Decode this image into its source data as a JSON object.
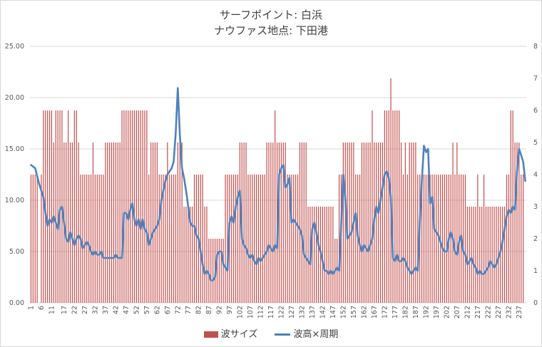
{
  "title_line1": "サーフポイント: 白浜",
  "title_line2": "ナウファス地点: 下田港",
  "legend": {
    "bars": "波サイズ",
    "line": "波高×周期"
  },
  "colors": {
    "bars": "#c0504d",
    "line": "#4f81bd",
    "grid": "#d9d9d9"
  },
  "chart_data": {
    "type": "bar+line",
    "n_points": 240,
    "y_left": {
      "min": 0,
      "max": 25,
      "ticks": [
        "0.00",
        "5.00",
        "10.00",
        "15.00",
        "20.00",
        "25.00"
      ]
    },
    "y_right": {
      "min": 0,
      "max": 8,
      "ticks": [
        "0",
        "1",
        "2",
        "3",
        "4",
        "5",
        "6",
        "7",
        "8"
      ]
    },
    "x_ticks": [
      "1",
      "6",
      "11",
      "17",
      "22",
      "27",
      "32",
      "37",
      "42",
      "47",
      "52",
      "57",
      "62",
      "67",
      "72",
      "77",
      "82",
      "87",
      "92",
      "97",
      "102",
      "107",
      "112",
      "117",
      "122",
      "127",
      "132",
      "137",
      "142",
      "147",
      "152",
      "157",
      "162",
      "167",
      "172",
      "177",
      "182",
      "187",
      "192",
      "197",
      "202",
      "207",
      "212",
      "217",
      "222",
      "227",
      "232",
      "237"
    ],
    "bar_segments": [
      [
        1,
        4,
        4
      ],
      [
        5,
        5,
        0
      ],
      [
        6,
        6,
        4
      ],
      [
        7,
        11,
        6
      ],
      [
        12,
        12,
        5
      ],
      [
        13,
        16,
        6
      ],
      [
        17,
        18,
        5
      ],
      [
        19,
        19,
        6
      ],
      [
        20,
        21,
        5
      ],
      [
        22,
        23,
        6
      ],
      [
        24,
        24,
        5
      ],
      [
        25,
        30,
        4
      ],
      [
        31,
        31,
        5
      ],
      [
        32,
        36,
        4
      ],
      [
        37,
        44,
        5
      ],
      [
        45,
        57,
        6
      ],
      [
        58,
        58,
        4
      ],
      [
        59,
        59,
        5
      ],
      [
        60,
        62,
        5
      ],
      [
        63,
        66,
        4
      ],
      [
        67,
        67,
        5
      ],
      [
        68,
        71,
        4
      ],
      [
        72,
        74,
        5
      ],
      [
        75,
        79,
        3
      ],
      [
        80,
        84,
        4
      ],
      [
        85,
        86,
        3
      ],
      [
        87,
        94,
        2
      ],
      [
        95,
        95,
        4
      ],
      [
        96,
        100,
        4
      ],
      [
        101,
        101,
        4
      ],
      [
        102,
        105,
        5
      ],
      [
        106,
        114,
        4
      ],
      [
        115,
        115,
        5
      ],
      [
        116,
        118,
        5
      ],
      [
        119,
        119,
        6
      ],
      [
        120,
        124,
        5
      ],
      [
        125,
        129,
        4
      ],
      [
        130,
        130,
        4
      ],
      [
        131,
        134,
        5
      ],
      [
        135,
        140,
        3
      ],
      [
        141,
        147,
        3
      ],
      [
        148,
        149,
        2
      ],
      [
        150,
        150,
        4
      ],
      [
        151,
        151,
        4
      ],
      [
        152,
        157,
        5
      ],
      [
        158,
        160,
        4
      ],
      [
        161,
        165,
        5
      ],
      [
        166,
        166,
        6
      ],
      [
        167,
        171,
        5
      ],
      [
        172,
        174,
        6
      ],
      [
        175,
        175,
        7
      ],
      [
        176,
        179,
        6
      ],
      [
        180,
        180,
        5
      ],
      [
        181,
        181,
        4
      ],
      [
        182,
        182,
        5
      ],
      [
        183,
        183,
        4
      ],
      [
        184,
        187,
        5
      ],
      [
        188,
        194,
        4
      ],
      [
        195,
        197,
        4
      ],
      [
        198,
        204,
        4
      ],
      [
        205,
        205,
        5
      ],
      [
        206,
        206,
        4
      ],
      [
        207,
        207,
        5
      ],
      [
        208,
        211,
        4
      ],
      [
        212,
        216,
        3
      ],
      [
        217,
        217,
        4
      ],
      [
        218,
        219,
        3
      ],
      [
        220,
        220,
        4
      ],
      [
        221,
        230,
        3
      ],
      [
        231,
        232,
        4
      ],
      [
        233,
        234,
        6
      ],
      [
        235,
        237,
        5
      ],
      [
        238,
        239,
        4
      ]
    ],
    "line_anchors": [
      [
        1,
        4.3
      ],
      [
        3,
        4.2
      ],
      [
        5,
        3.7
      ],
      [
        7,
        3.3
      ],
      [
        8,
        2.8
      ],
      [
        9,
        2.4
      ],
      [
        10,
        2.6
      ],
      [
        11,
        2.5
      ],
      [
        12,
        2.7
      ],
      [
        13,
        2.5
      ],
      [
        14,
        2.3
      ],
      [
        15,
        2.9
      ],
      [
        16,
        3.0
      ],
      [
        17,
        2.5
      ],
      [
        18,
        2.0
      ],
      [
        19,
        1.9
      ],
      [
        20,
        2.2
      ],
      [
        21,
        2.0
      ],
      [
        22,
        1.8
      ],
      [
        23,
        2.0
      ],
      [
        24,
        2.1
      ],
      [
        25,
        2.0
      ],
      [
        26,
        1.7
      ],
      [
        27,
        1.8
      ],
      [
        28,
        1.9
      ],
      [
        29,
        1.8
      ],
      [
        30,
        1.6
      ],
      [
        31,
        1.5
      ],
      [
        32,
        1.6
      ],
      [
        33,
        1.5
      ],
      [
        34,
        1.5
      ],
      [
        35,
        1.6
      ],
      [
        36,
        1.4
      ],
      [
        37,
        1.4
      ],
      [
        38,
        1.4
      ],
      [
        39,
        1.4
      ],
      [
        40,
        1.4
      ],
      [
        41,
        1.4
      ],
      [
        42,
        1.5
      ],
      [
        43,
        1.4
      ],
      [
        44,
        1.4
      ],
      [
        45,
        1.4
      ],
      [
        46,
        2.8
      ],
      [
        47,
        2.8
      ],
      [
        48,
        2.6
      ],
      [
        49,
        2.9
      ],
      [
        50,
        3.1
      ],
      [
        51,
        2.6
      ],
      [
        52,
        2.4
      ],
      [
        53,
        2.6
      ],
      [
        54,
        2.3
      ],
      [
        55,
        2.6
      ],
      [
        56,
        2.3
      ],
      [
        57,
        2.2
      ],
      [
        58,
        1.8
      ],
      [
        59,
        2.0
      ],
      [
        60,
        2.2
      ],
      [
        61,
        2.3
      ],
      [
        62,
        2.4
      ],
      [
        63,
        2.6
      ],
      [
        64,
        3.2
      ],
      [
        65,
        3.5
      ],
      [
        66,
        3.8
      ],
      [
        67,
        4.0
      ],
      [
        68,
        4.1
      ],
      [
        69,
        4.2
      ],
      [
        70,
        4.4
      ],
      [
        71,
        5.3
      ],
      [
        72,
        6.7
      ],
      [
        73,
        5.2
      ],
      [
        74,
        4.2
      ],
      [
        75,
        3.9
      ],
      [
        76,
        3.5
      ],
      [
        77,
        3.0
      ],
      [
        78,
        2.5
      ],
      [
        79,
        2.4
      ],
      [
        80,
        2.4
      ],
      [
        81,
        2.1
      ],
      [
        82,
        2.0
      ],
      [
        83,
        1.6
      ],
      [
        84,
        1.2
      ],
      [
        85,
        0.9
      ],
      [
        86,
        1.0
      ],
      [
        87,
        0.9
      ],
      [
        88,
        0.7
      ],
      [
        89,
        0.7
      ],
      [
        90,
        0.8
      ],
      [
        91,
        1.5
      ],
      [
        92,
        1.6
      ],
      [
        93,
        1.6
      ],
      [
        94,
        1.2
      ],
      [
        95,
        1.1
      ],
      [
        96,
        1.0
      ],
      [
        97,
        2.5
      ],
      [
        98,
        2.7
      ],
      [
        99,
        2.5
      ],
      [
        100,
        3.0
      ],
      [
        101,
        3.3
      ],
      [
        102,
        3.5
      ],
      [
        103,
        2.0
      ],
      [
        104,
        1.8
      ],
      [
        105,
        1.7
      ],
      [
        106,
        1.5
      ],
      [
        107,
        1.4
      ],
      [
        108,
        1.5
      ],
      [
        109,
        1.3
      ],
      [
        110,
        1.2
      ],
      [
        111,
        1.4
      ],
      [
        112,
        1.3
      ],
      [
        113,
        1.4
      ],
      [
        114,
        1.5
      ],
      [
        115,
        1.6
      ],
      [
        116,
        1.8
      ],
      [
        117,
        1.7
      ],
      [
        118,
        1.6
      ],
      [
        119,
        1.8
      ],
      [
        120,
        1.7
      ],
      [
        121,
        4.0
      ],
      [
        122,
        4.2
      ],
      [
        123,
        4.3
      ],
      [
        124,
        3.6
      ],
      [
        125,
        3.7
      ],
      [
        126,
        3.9
      ],
      [
        127,
        2.5
      ],
      [
        128,
        2.6
      ],
      [
        129,
        2.5
      ],
      [
        130,
        2.4
      ],
      [
        131,
        2.3
      ],
      [
        132,
        2.1
      ],
      [
        133,
        1.5
      ],
      [
        134,
        1.4
      ],
      [
        135,
        1.3
      ],
      [
        136,
        1.2
      ],
      [
        137,
        2.3
      ],
      [
        138,
        2.5
      ],
      [
        139,
        2.2
      ],
      [
        140,
        1.8
      ],
      [
        141,
        1.6
      ],
      [
        142,
        1.3
      ],
      [
        143,
        1.0
      ],
      [
        144,
        1.0
      ],
      [
        145,
        0.9
      ],
      [
        146,
        1.0
      ],
      [
        147,
        0.9
      ],
      [
        148,
        1.0
      ],
      [
        149,
        1.1
      ],
      [
        150,
        1.0
      ],
      [
        151,
        2.4
      ],
      [
        152,
        4.0
      ],
      [
        153,
        3.2
      ],
      [
        154,
        2.0
      ],
      [
        155,
        2.1
      ],
      [
        156,
        2.2
      ],
      [
        157,
        2.5
      ],
      [
        158,
        2.8
      ],
      [
        159,
        2.1
      ],
      [
        160,
        1.8
      ],
      [
        161,
        1.6
      ],
      [
        162,
        1.8
      ],
      [
        163,
        1.7
      ],
      [
        164,
        1.6
      ],
      [
        165,
        1.8
      ],
      [
        166,
        2.0
      ],
      [
        167,
        2.6
      ],
      [
        168,
        3.0
      ],
      [
        169,
        2.8
      ],
      [
        170,
        3.2
      ],
      [
        171,
        3.6
      ],
      [
        172,
        4.0
      ],
      [
        173,
        4.1
      ],
      [
        174,
        3.9
      ],
      [
        175,
        3.3
      ],
      [
        176,
        1.4
      ],
      [
        177,
        1.3
      ],
      [
        178,
        1.5
      ],
      [
        179,
        1.3
      ],
      [
        180,
        1.3
      ],
      [
        181,
        1.4
      ],
      [
        182,
        1.3
      ],
      [
        183,
        1.1
      ],
      [
        184,
        1.0
      ],
      [
        185,
        0.9
      ],
      [
        186,
        1.0
      ],
      [
        187,
        1.1
      ],
      [
        188,
        1.0
      ],
      [
        189,
        2.5
      ],
      [
        190,
        3.8
      ],
      [
        191,
        4.9
      ],
      [
        192,
        4.7
      ],
      [
        193,
        4.8
      ],
      [
        194,
        3.1
      ],
      [
        195,
        3.3
      ],
      [
        196,
        2.3
      ],
      [
        197,
        2.2
      ],
      [
        198,
        2.1
      ],
      [
        199,
        1.9
      ],
      [
        200,
        1.7
      ],
      [
        201,
        1.6
      ],
      [
        202,
        1.6
      ],
      [
        203,
        2.0
      ],
      [
        204,
        2.2
      ],
      [
        205,
        2.0
      ],
      [
        206,
        1.6
      ],
      [
        207,
        1.5
      ],
      [
        208,
        1.9
      ],
      [
        209,
        2.1
      ],
      [
        210,
        1.6
      ],
      [
        211,
        1.5
      ],
      [
        212,
        1.2
      ],
      [
        213,
        1.3
      ],
      [
        214,
        1.4
      ],
      [
        215,
        1.2
      ],
      [
        216,
        1.1
      ],
      [
        217,
        0.9
      ],
      [
        218,
        1.0
      ],
      [
        219,
        0.9
      ],
      [
        220,
        0.9
      ],
      [
        221,
        1.0
      ],
      [
        222,
        1.1
      ],
      [
        223,
        1.3
      ],
      [
        224,
        1.2
      ],
      [
        225,
        1.1
      ],
      [
        226,
        1.2
      ],
      [
        227,
        1.4
      ],
      [
        228,
        1.6
      ],
      [
        229,
        1.9
      ],
      [
        230,
        2.3
      ],
      [
        231,
        2.7
      ],
      [
        232,
        2.9
      ],
      [
        233,
        2.8
      ],
      [
        234,
        3.0
      ],
      [
        235,
        2.9
      ],
      [
        236,
        4.1
      ],
      [
        237,
        4.8
      ],
      [
        238,
        4.6
      ],
      [
        239,
        4.4
      ],
      [
        240,
        3.8
      ]
    ]
  }
}
